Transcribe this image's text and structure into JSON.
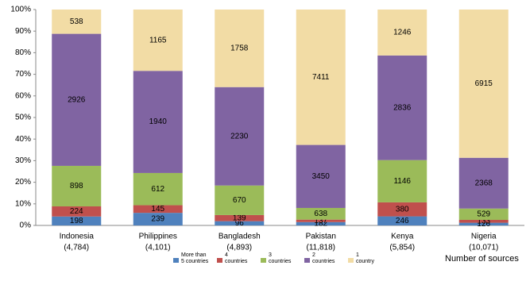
{
  "chart_data": {
    "type": "bar",
    "stacking": "percent",
    "categories": [
      "Indonesia",
      "Philippines",
      "Bangladesh",
      "Pakistan",
      "Kenya",
      "Nigeria"
    ],
    "totals": [
      {
        "value": 4784,
        "label": "(4,784)"
      },
      {
        "value": 4101,
        "label": "(4,101)"
      },
      {
        "value": 4893,
        "label": "(4,893)"
      },
      {
        "value": 11818,
        "label": "(11,818)"
      },
      {
        "value": 5854,
        "label": "(5,854)"
      },
      {
        "value": 10071,
        "label": "(10,071)"
      }
    ],
    "x_label": "Number of sources",
    "series": [
      {
        "name": "More than\n5 countries",
        "color": "#4f81bd",
        "values": [
          198,
          239,
          96,
          182,
          246,
          126
        ]
      },
      {
        "name": "4\ncountries",
        "color": "#c0504d",
        "values": [
          224,
          145,
          139,
          137,
          380,
          133
        ]
      },
      {
        "name": "3\ncountries",
        "color": "#9bbb59",
        "values": [
          898,
          612,
          670,
          638,
          1146,
          529
        ]
      },
      {
        "name": "2\ncountries",
        "color": "#8064a2",
        "values": [
          2926,
          1940,
          2230,
          3450,
          2836,
          2368
        ]
      },
      {
        "name": "1\ncountry",
        "color": "#f2dca5",
        "values": [
          538,
          1165,
          1758,
          7411,
          1246,
          6915
        ]
      }
    ],
    "ylim": [
      0,
      100
    ],
    "yticks": [
      {
        "value": 0,
        "label": "0%"
      },
      {
        "value": 10,
        "label": "10%"
      },
      {
        "value": 20,
        "label": "20%"
      },
      {
        "value": 30,
        "label": "30%"
      },
      {
        "value": 40,
        "label": "40%"
      },
      {
        "value": 50,
        "label": "50%"
      },
      {
        "value": 60,
        "label": "60%"
      },
      {
        "value": 70,
        "label": "70%"
      },
      {
        "value": 80,
        "label": "80%"
      },
      {
        "value": 90,
        "label": "90%"
      },
      {
        "value": 100,
        "label": "100%"
      }
    ],
    "grid": false
  }
}
